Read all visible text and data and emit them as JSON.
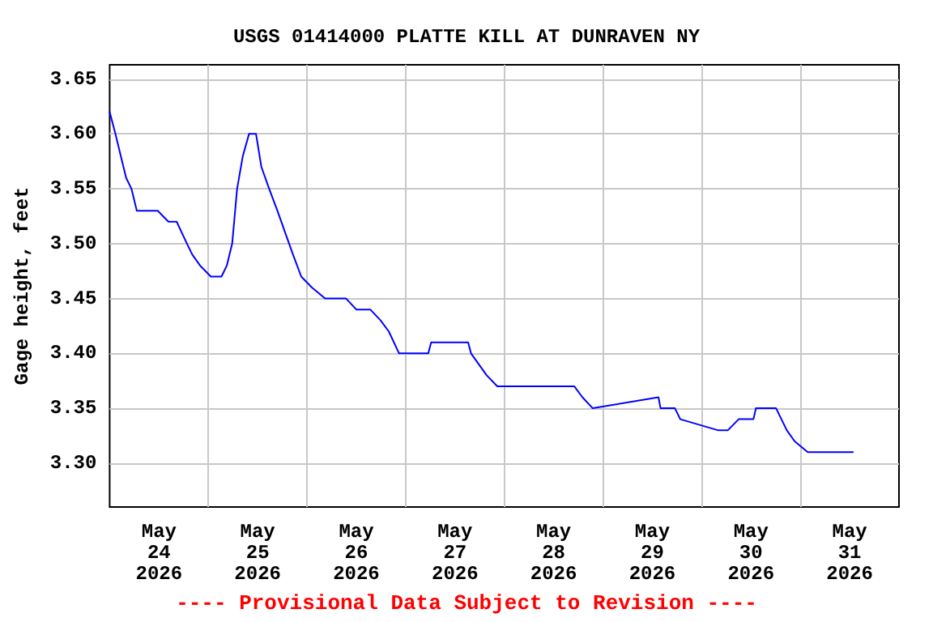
{
  "chart_data": {
    "type": "line",
    "title": "USGS 01414000 PLATTE KILL AT DUNRAVEN NY",
    "ylabel": "Gage height, feet",
    "annotations": [
      "---- Provisional Data Subject to Revision ----"
    ],
    "x": [
      "2026-05-24T00:00",
      "2026-05-24T01:24",
      "2026-05-24T02:42",
      "2026-05-24T04:00",
      "2026-05-24T05:18",
      "2026-05-24T06:36",
      "2026-05-24T11:42",
      "2026-05-24T14:18",
      "2026-05-24T16:18",
      "2026-05-24T18:48",
      "2026-05-24T20:06",
      "2026-05-24T22:00",
      "2026-05-25T00:36",
      "2026-05-25T03:12",
      "2026-05-25T04:30",
      "2026-05-25T05:48",
      "2026-05-25T07:00",
      "2026-05-25T08:24",
      "2026-05-25T09:54",
      "2026-05-25T11:36",
      "2026-05-25T12:54",
      "2026-05-25T14:48",
      "2026-05-25T16:48",
      "2026-05-25T18:42",
      "2026-05-25T20:36",
      "2026-05-25T22:36",
      "2026-05-26T01:12",
      "2026-05-26T04:24",
      "2026-05-26T09:30",
      "2026-05-26T12:00",
      "2026-05-26T15:24",
      "2026-05-26T17:54",
      "2026-05-26T19:54",
      "2026-05-26T22:24",
      "2026-05-27T05:30",
      "2026-05-27T06:12",
      "2026-05-27T15:12",
      "2026-05-27T15:54",
      "2026-05-27T17:48",
      "2026-05-27T19:42",
      "2026-05-27T22:18",
      "2026-05-28T17:00",
      "2026-05-28T19:00",
      "2026-05-28T21:30",
      "2026-05-29T13:30",
      "2026-05-29T14:00",
      "2026-05-29T17:30",
      "2026-05-29T18:48",
      "2026-05-30T03:54",
      "2026-05-30T06:24",
      "2026-05-30T09:00",
      "2026-05-30T12:36",
      "2026-05-30T13:12",
      "2026-05-30T18:06",
      "2026-05-30T19:24",
      "2026-05-30T20:42",
      "2026-05-30T22:36",
      "2026-05-31T01:48",
      "2026-05-31T12:48"
    ],
    "series": [
      {
        "color": "#0000ff",
        "values": [
          3.62,
          3.6,
          3.58,
          3.56,
          3.55,
          3.53,
          3.53,
          3.52,
          3.52,
          3.5,
          3.49,
          3.48,
          3.47,
          3.47,
          3.48,
          3.5,
          3.55,
          3.58,
          3.6,
          3.6,
          3.57,
          3.55,
          3.53,
          3.51,
          3.49,
          3.47,
          3.46,
          3.45,
          3.45,
          3.44,
          3.44,
          3.43,
          3.42,
          3.4,
          3.4,
          3.41,
          3.41,
          3.4,
          3.39,
          3.38,
          3.37,
          3.37,
          3.36,
          3.35,
          3.36,
          3.35,
          3.35,
          3.34,
          3.33,
          3.33,
          3.34,
          3.34,
          3.35,
          3.35,
          3.34,
          3.33,
          3.32,
          3.31,
          3.31
        ]
      }
    ],
    "xlim": [
      "2026-05-24T00:00",
      "2026-06-01T00:00"
    ],
    "xticks": [
      {
        "value": "2026-05-24T12:00",
        "label": "May\n24\n2026"
      },
      {
        "value": "2026-05-25T12:00",
        "label": "May\n25\n2026"
      },
      {
        "value": "2026-05-26T12:00",
        "label": "May\n26\n2026"
      },
      {
        "value": "2026-05-27T12:00",
        "label": "May\n27\n2026"
      },
      {
        "value": "2026-05-28T12:00",
        "label": "May\n28\n2026"
      },
      {
        "value": "2026-05-29T12:00",
        "label": "May\n29\n2026"
      },
      {
        "value": "2026-05-30T12:00",
        "label": "May\n30\n2026"
      },
      {
        "value": "2026-05-31T12:00",
        "label": "May\n31\n2026"
      },
      {
        "value": "2026-05-25T00:00",
        "label": null
      },
      {
        "value": "2026-05-26T00:00",
        "label": null
      },
      {
        "value": "2026-05-27T00:00",
        "label": null
      },
      {
        "value": "2026-05-28T00:00",
        "label": null
      },
      {
        "value": "2026-05-29T00:00",
        "label": null
      },
      {
        "value": "2026-05-30T00:00",
        "label": null
      },
      {
        "value": "2026-05-31T00:00",
        "label": null
      }
    ],
    "ylim": [
      3.26,
      3.663
    ],
    "yticks": [
      {
        "value": 3.3,
        "label": "3.30"
      },
      {
        "value": 3.35,
        "label": "3.35"
      },
      {
        "value": 3.4,
        "label": "3.40"
      },
      {
        "value": 3.45,
        "label": "3.45"
      },
      {
        "value": 3.5,
        "label": "3.50"
      },
      {
        "value": 3.55,
        "label": "3.55"
      },
      {
        "value": 3.6,
        "label": "3.60"
      },
      {
        "value": 3.65,
        "label": "3.65"
      }
    ],
    "grid": true,
    "marker": "none",
    "line_style": "solid"
  }
}
